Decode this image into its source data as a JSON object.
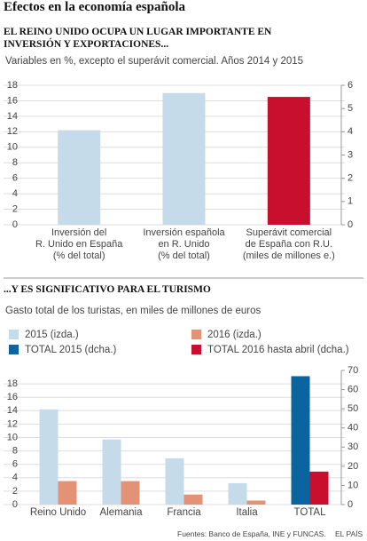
{
  "title": "Efectos en la economía española",
  "source": "Fuentes: Banco de España, INE y FUNCAS.",
  "brand": "EL PAÍS",
  "chart_data": [
    {
      "type": "bar",
      "title": "EL REINO UNIDO OCUPA UN LUGAR IMPORTANTE EN\nINVERSIÓN Y EXPORTACIONES...",
      "subtitle": "Variables en %, excepto el superávit comercial. Años 2014 y 2015",
      "categories": [
        "Inversión del\nR. Unido en España\n(% del total)",
        "Inversión española\nen R. Unido\n(% del total)",
        "Superávit comercial\nde España con R.U.\n(miles de millones e.)"
      ],
      "series": [
        {
          "color": "#c6dbea",
          "values": [
            12.2,
            17,
            null
          ]
        },
        {
          "color": "#c8102e",
          "axis": "y2",
          "values": [
            null,
            null,
            5.5
          ]
        }
      ],
      "ylim": [
        0,
        18
      ],
      "yticks": [
        0,
        2,
        4,
        6,
        8,
        10,
        12,
        14,
        16,
        18
      ],
      "y2lim": [
        0,
        6
      ],
      "y2ticks": [
        0,
        1,
        2,
        3,
        4,
        5,
        6
      ],
      "grid": true
    },
    {
      "type": "bar",
      "title": "...Y ES SIGNIFICATIVO PARA EL TURISMO",
      "subtitle": "Gasto total de los turistas, en miles de millones de euros",
      "categories": [
        "Reino Unido",
        "Alemania",
        "Francia",
        "Italia",
        "TOTAL"
      ],
      "series": [
        {
          "name": "2015 (izda.)",
          "color": "#c6dbea",
          "values": [
            14.2,
            9.7,
            6.9,
            3.2,
            null
          ]
        },
        {
          "name": "2016 (izda.)",
          "color": "#e39275",
          "values": [
            3.5,
            3.5,
            1.5,
            0.6,
            null
          ]
        },
        {
          "name": "TOTAL 2015 (dcha.)",
          "color": "#0a64a0",
          "axis": "y2",
          "values": [
            null,
            null,
            null,
            null,
            67
          ]
        },
        {
          "name": "TOTAL 2016 hasta abril (dcha.)",
          "color": "#c8102e",
          "axis": "y2",
          "values": [
            null,
            null,
            null,
            null,
            17.2
          ]
        }
      ],
      "ylim": [
        0,
        20
      ],
      "yticks": [
        0,
        2,
        4,
        6,
        8,
        10,
        12,
        14,
        16,
        18
      ],
      "y2lim": [
        0,
        70
      ],
      "y2ticks": [
        0,
        10,
        20,
        30,
        40,
        50,
        60,
        70
      ],
      "grid": true
    }
  ]
}
